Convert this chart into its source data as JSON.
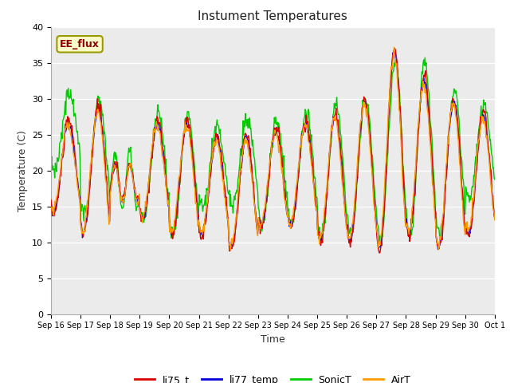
{
  "title": "Instument Temperatures",
  "xlabel": "Time",
  "ylabel": "Temperature (C)",
  "ylim": [
    0,
    40
  ],
  "yticks": [
    0,
    5,
    10,
    15,
    20,
    25,
    30,
    35,
    40
  ],
  "x_labels": [
    "Sep 16",
    "Sep 17",
    "Sep 18",
    "Sep 19",
    "Sep 20",
    "Sep 21",
    "Sep 22",
    "Sep 23",
    "Sep 24",
    "Sep 25",
    "Sep 26",
    "Sep 27",
    "Sep 28",
    "Sep 29",
    "Sep 30",
    "Oct 1"
  ],
  "annotation": "EE_flux",
  "colors": {
    "li75_t": "#dd0000",
    "li77_temp": "#0000dd",
    "SonicT": "#00cc00",
    "AirT": "#ff9900"
  },
  "bg_color": "#ebebeb",
  "fig_color": "#ffffff",
  "grid_color": "#ffffff",
  "day_peaks_li75": [
    27,
    29,
    18,
    27,
    27,
    25,
    25,
    26,
    27,
    28,
    30,
    37,
    33,
    30,
    28
  ],
  "day_mins_li75": [
    14,
    11,
    17,
    13,
    11,
    11,
    9,
    12,
    12,
    10,
    10,
    9,
    11,
    9,
    11
  ],
  "day_peaks_sonic": [
    31,
    30,
    21,
    28,
    28,
    26,
    27,
    27,
    28,
    29,
    30,
    35,
    35,
    31,
    29
  ],
  "day_mins_sonic": [
    20,
    14,
    17,
    13,
    11,
    15,
    15,
    13,
    13,
    11,
    11,
    10,
    11,
    11,
    16
  ],
  "n_days": 15,
  "pts_per_day": 48
}
